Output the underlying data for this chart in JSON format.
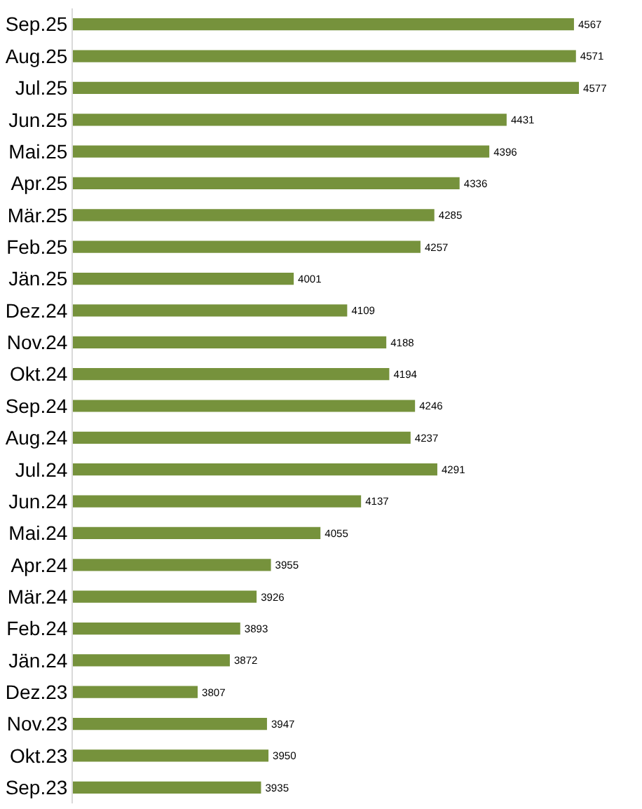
{
  "chart_data": {
    "type": "bar",
    "orientation": "horizontal",
    "categories": [
      "Sep.25",
      "Aug.25",
      "Jul.25",
      "Jun.25",
      "Mai.25",
      "Apr.25",
      "Mär.25",
      "Feb.25",
      "Jän.25",
      "Dez.24",
      "Nov.24",
      "Okt.24",
      "Sep.24",
      "Aug.24",
      "Jul.24",
      "Jun.24",
      "Mai.24",
      "Apr.24",
      "Mär.24",
      "Feb.24",
      "Jän.24",
      "Dez.23",
      "Nov.23",
      "Okt.23",
      "Sep.23"
    ],
    "values": [
      4567,
      4571,
      4577,
      4431,
      4396,
      4336,
      4285,
      4257,
      4001,
      4109,
      4188,
      4194,
      4246,
      4237,
      4291,
      4137,
      4055,
      3955,
      3926,
      3893,
      3872,
      3807,
      3947,
      3950,
      3935
    ],
    "color": "#76923c",
    "xlim": [
      3555,
      4577
    ],
    "data_labels": true,
    "tick_labels": "y"
  }
}
